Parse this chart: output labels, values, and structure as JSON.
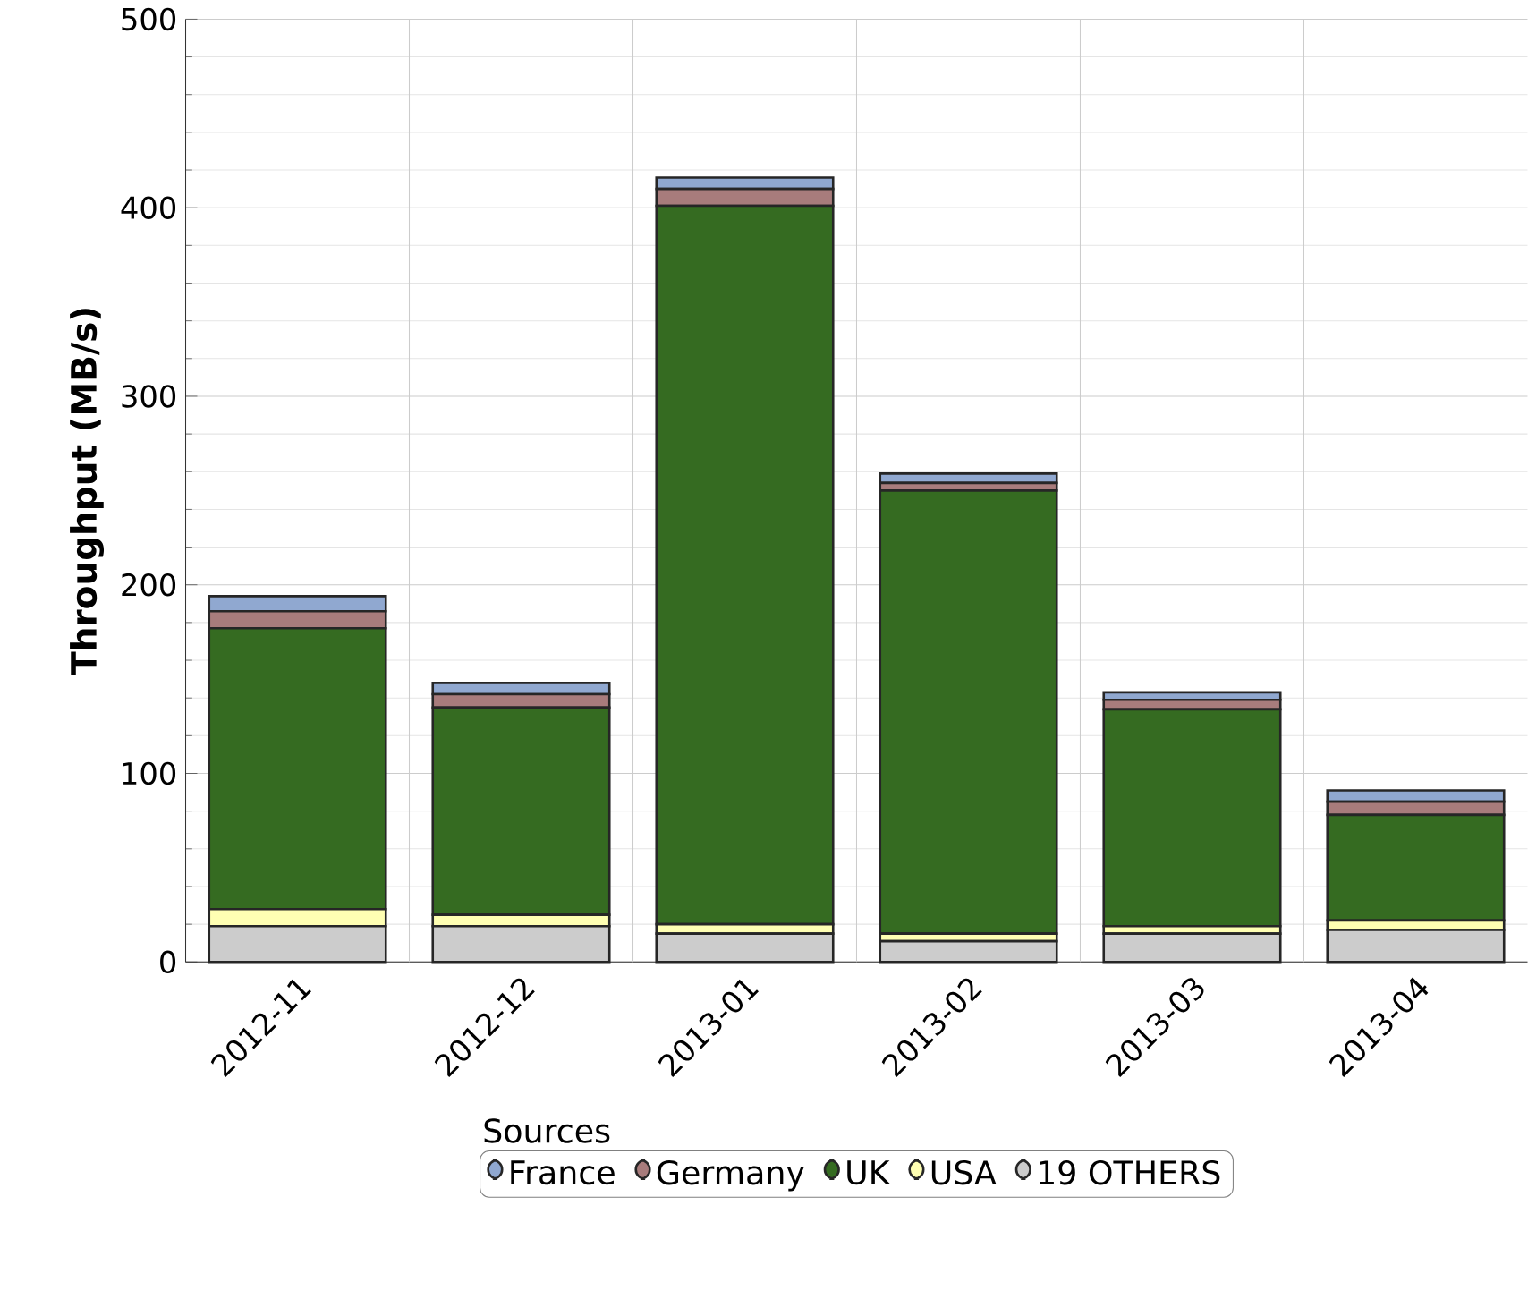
{
  "chart_data": {
    "type": "bar",
    "stacked": true,
    "ylabel": "Throughput (MB/s)",
    "legend_title": "Sources",
    "categories": [
      "2012-11",
      "2012-12",
      "2013-01",
      "2013-02",
      "2013-03",
      "2013-04"
    ],
    "series": [
      {
        "name": "19 OTHERS",
        "color": "#cccccc",
        "values": [
          19,
          19,
          15,
          11,
          15,
          17
        ]
      },
      {
        "name": "USA",
        "color": "#ffffb3",
        "values": [
          9,
          6,
          5,
          4,
          4,
          5
        ]
      },
      {
        "name": "UK",
        "color": "#356b21",
        "values": [
          149,
          110,
          381,
          235,
          115,
          56
        ]
      },
      {
        "name": "Germany",
        "color": "#a87c7c",
        "values": [
          9,
          7,
          9,
          4,
          5,
          7
        ]
      },
      {
        "name": "France",
        "color": "#90a8d0",
        "values": [
          8,
          6,
          6,
          5,
          4,
          6
        ]
      }
    ],
    "ylim": [
      0,
      500
    ],
    "yticks": [
      0,
      100,
      200,
      300,
      400,
      500
    ],
    "grid": true,
    "legend": "bottom"
  }
}
